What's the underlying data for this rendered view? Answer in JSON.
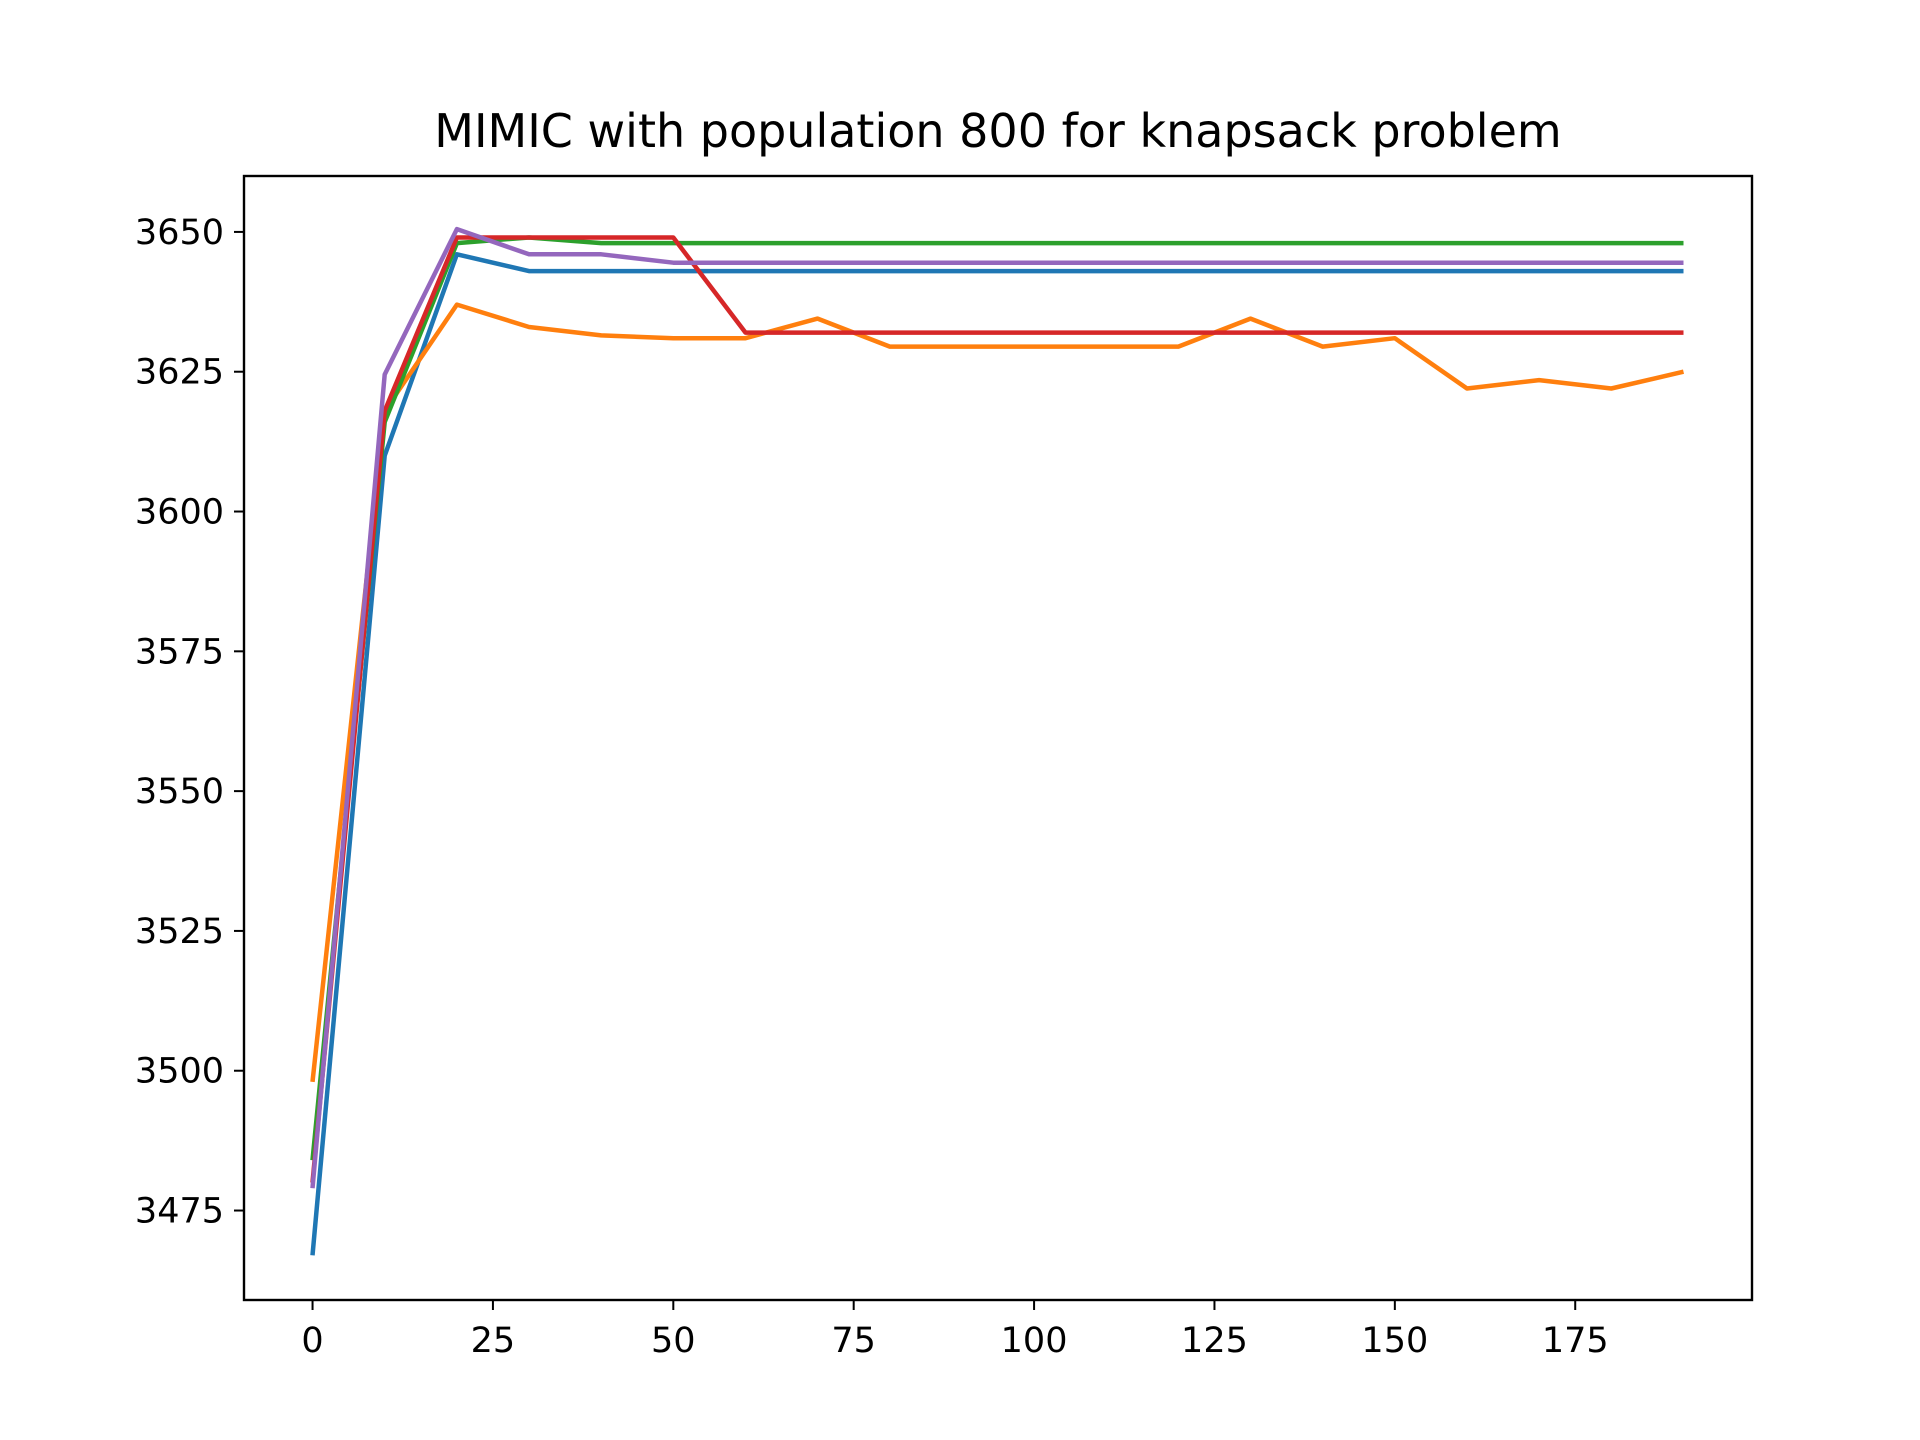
{
  "chart_data": {
    "type": "line",
    "title": "MIMIC with population 800 for knapsack problem",
    "xlabel": "",
    "ylabel": "",
    "x": [
      0,
      10,
      20,
      30,
      40,
      50,
      60,
      70,
      80,
      90,
      100,
      110,
      120,
      130,
      140,
      150,
      160,
      170,
      180,
      190
    ],
    "xlim": [
      -9.5,
      199.5
    ],
    "ylim": [
      3459,
      3660
    ],
    "xticks": [
      0,
      25,
      50,
      75,
      100,
      125,
      150,
      175
    ],
    "yticks": [
      3475,
      3500,
      3525,
      3550,
      3575,
      3600,
      3625,
      3650
    ],
    "grid": false,
    "legend": "none",
    "series": [
      {
        "color": "#1f77b4",
        "values": [
          3467,
          3610,
          3646,
          3643,
          3643,
          3643,
          3643,
          3643,
          3643,
          3643,
          3643,
          3643,
          3643,
          3643,
          3643,
          3643,
          3643,
          3643,
          3643,
          3643
        ]
      },
      {
        "color": "#ff7f0e",
        "values": [
          3498,
          3618,
          3637,
          3633,
          3631.5,
          3631,
          3631,
          3634.5,
          3629.5,
          3629.5,
          3629.5,
          3629.5,
          3629.5,
          3634.5,
          3629.5,
          3631,
          3622,
          3623.5,
          3622,
          3625
        ]
      },
      {
        "color": "#2ca02c",
        "values": [
          3484,
          3616,
          3648,
          3649,
          3648,
          3648,
          3648,
          3648,
          3648,
          3648,
          3648,
          3648,
          3648,
          3648,
          3648,
          3648,
          3648,
          3648,
          3648,
          3648
        ]
      },
      {
        "color": "#d62728",
        "values": [
          3480,
          3618,
          3649,
          3649,
          3649,
          3649,
          3632,
          3632,
          3632,
          3632,
          3632,
          3632,
          3632,
          3632,
          3632,
          3632,
          3632,
          3632,
          3632,
          3632
        ]
      },
      {
        "color": "#9467bd",
        "values": [
          3479,
          3624.5,
          3650.5,
          3646,
          3646,
          3644.5,
          3644.5,
          3644.5,
          3644.5,
          3644.5,
          3644.5,
          3644.5,
          3644.5,
          3644.5,
          3644.5,
          3644.5,
          3644.5,
          3644.5,
          3644.5,
          3644.5
        ]
      }
    ]
  }
}
